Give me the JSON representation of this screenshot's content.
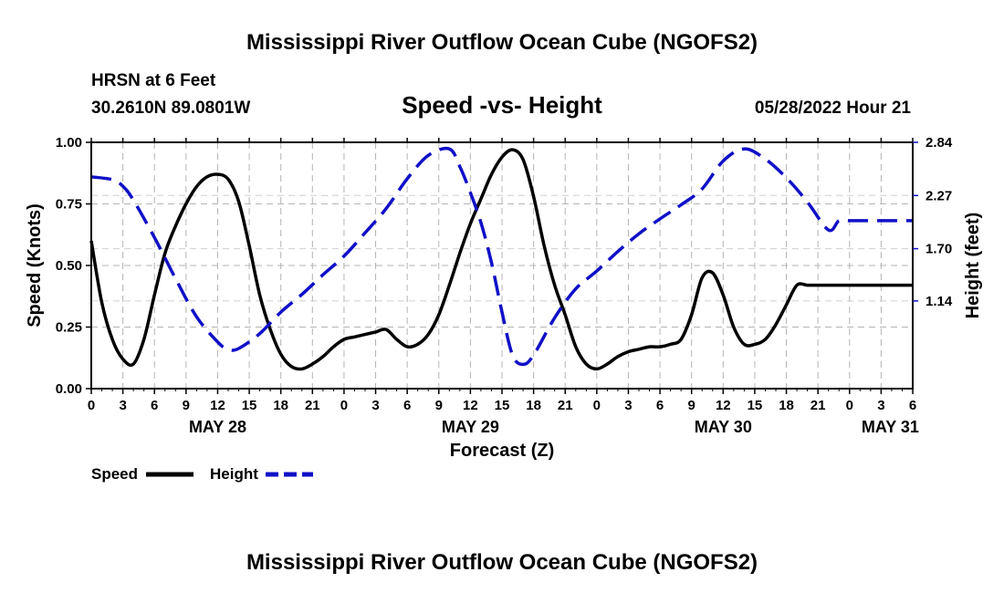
{
  "title": "Mississippi River Outflow Ocean Cube (NGOFS2)",
  "footer_title": "Mississippi River Outflow Ocean Cube (NGOFS2)",
  "station": {
    "name": "HRSN at 6 Feet",
    "coords": "30.2610N  89.0801W",
    "timestamp": "05/28/2022 Hour 21"
  },
  "chart_data": {
    "type": "line",
    "title": "Speed -vs- Height",
    "xlabel": "Forecast (Z)",
    "ylabel_left": "Speed (Knots)",
    "ylabel_right": "Height (feet)",
    "xlim": [
      0,
      78
    ],
    "ylim_left": [
      0,
      1.0
    ],
    "ylim_right": [
      0.2,
      2.84
    ],
    "x_tick_labels": [
      "0",
      "3",
      "6",
      "9",
      "12",
      "15",
      "18",
      "21",
      "0",
      "3",
      "6",
      "9",
      "12",
      "15",
      "18",
      "21",
      "0",
      "3",
      "6",
      "9",
      "12",
      "15",
      "18",
      "21",
      "0",
      "3",
      "6"
    ],
    "y_left_ticks": [
      "0.00",
      "0.25",
      "0.50",
      "0.75",
      "1.00"
    ],
    "y_left_tick_values": [
      0,
      0.25,
      0.5,
      0.75,
      1.0
    ],
    "y_right_ticks": [
      "1.14",
      "1.70",
      "2.27",
      "2.84"
    ],
    "y_right_tick_values": [
      1.14,
      1.7,
      2.27,
      2.84
    ],
    "day_labels": [
      {
        "label": "MAY 28",
        "hour": 12
      },
      {
        "label": "MAY 29",
        "hour": 36
      },
      {
        "label": "MAY 30",
        "hour": 60
      },
      {
        "label": "MAY 31",
        "hour": 75
      }
    ],
    "grid": true,
    "series": [
      {
        "name": "Speed",
        "axis": "left",
        "color": "#000000",
        "style": "solid",
        "x": [
          0,
          1,
          2,
          3,
          4,
          5,
          6,
          7,
          8,
          9,
          10,
          11,
          12,
          13,
          14,
          15,
          16,
          17,
          18,
          19,
          20,
          21,
          22,
          23,
          24,
          25,
          26,
          27,
          28,
          29,
          30,
          31,
          32,
          33,
          34,
          35,
          36,
          37,
          38,
          39,
          40,
          41,
          42,
          43,
          44,
          45,
          46,
          47,
          48,
          49,
          50,
          51,
          52,
          53,
          54,
          55,
          56,
          57,
          58,
          59,
          60,
          61,
          62,
          63,
          64,
          65,
          66,
          67,
          68,
          69,
          70,
          71,
          72,
          73,
          74,
          75,
          76,
          77,
          78
        ],
        "values": [
          0.6,
          0.35,
          0.2,
          0.12,
          0.1,
          0.2,
          0.38,
          0.55,
          0.66,
          0.75,
          0.82,
          0.86,
          0.87,
          0.85,
          0.76,
          0.58,
          0.38,
          0.24,
          0.14,
          0.09,
          0.08,
          0.1,
          0.13,
          0.17,
          0.2,
          0.21,
          0.22,
          0.23,
          0.24,
          0.2,
          0.17,
          0.18,
          0.22,
          0.3,
          0.42,
          0.55,
          0.67,
          0.77,
          0.87,
          0.94,
          0.97,
          0.93,
          0.78,
          0.58,
          0.42,
          0.3,
          0.17,
          0.1,
          0.08,
          0.1,
          0.13,
          0.15,
          0.16,
          0.17,
          0.17,
          0.18,
          0.2,
          0.3,
          0.45,
          0.47,
          0.38,
          0.25,
          0.18,
          0.18,
          0.2,
          0.26,
          0.34,
          0.42,
          0.42,
          0.42,
          0.42,
          0.42,
          0.42,
          0.42,
          0.42,
          0.42,
          0.42,
          0.42,
          0.42
        ]
      },
      {
        "name": "Height",
        "axis": "right",
        "color": "#1010c8",
        "style": "dashed",
        "x": [
          0,
          2,
          3,
          4,
          6,
          8,
          10,
          12,
          13,
          14,
          16,
          18,
          20,
          22,
          24,
          26,
          28,
          30,
          32,
          34,
          35,
          36,
          37,
          38,
          39,
          40,
          41,
          42,
          44,
          46,
          48,
          50,
          52,
          54,
          56,
          58,
          60,
          62,
          64,
          66,
          68,
          70,
          71,
          72,
          73,
          74,
          75,
          76,
          77,
          78
        ],
        "values": [
          2.47,
          2.44,
          2.37,
          2.22,
          1.82,
          1.38,
          0.97,
          0.7,
          0.62,
          0.63,
          0.79,
          1.02,
          1.21,
          1.42,
          1.62,
          1.87,
          2.13,
          2.45,
          2.7,
          2.77,
          2.58,
          2.3,
          1.98,
          1.55,
          1.02,
          0.56,
          0.46,
          0.56,
          0.96,
          1.27,
          1.46,
          1.67,
          1.86,
          2.02,
          2.17,
          2.34,
          2.64,
          2.77,
          2.66,
          2.46,
          2.2,
          1.9,
          2.0,
          2.0,
          2.0,
          2.0,
          2.0,
          2.0,
          2.0,
          2.0
        ]
      }
    ]
  },
  "legend": [
    {
      "label": "Speed",
      "color": "#000000",
      "style": "solid"
    },
    {
      "label": "Height",
      "color": "#1010c8",
      "style": "dashed"
    }
  ]
}
